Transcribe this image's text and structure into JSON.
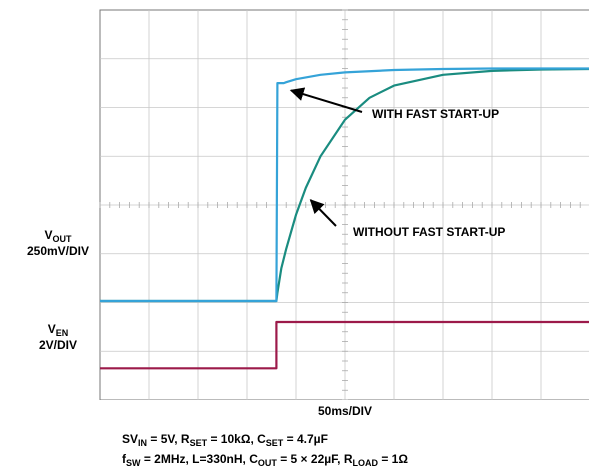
{
  "chart_data": {
    "type": "line",
    "xlabel": "50ms/DIV",
    "divisions": {
      "x": 10,
      "y": 8
    },
    "grid": true,
    "channels": [
      {
        "name_main": "V",
        "name_sub": "OUT",
        "scale": "250mV/DIV",
        "color": "#0e7f7f"
      },
      {
        "name_main": "V",
        "name_sub": "EN",
        "scale": "2V/DIV",
        "color": "#9c1a4a"
      }
    ],
    "series": [
      {
        "id": "vout-without",
        "color": "#1a8c80",
        "x": [
          0,
          3.6,
          3.62,
          3.7,
          3.8,
          3.9,
          4.0,
          4.2,
          4.5,
          5.0,
          5.5,
          6.0,
          7.0,
          8.0,
          9.0,
          10.0
        ],
        "y": [
          2.03,
          2.03,
          2.2,
          2.7,
          3.1,
          3.45,
          3.8,
          4.35,
          5.0,
          5.75,
          6.2,
          6.45,
          6.67,
          6.75,
          6.78,
          6.79
        ]
      },
      {
        "id": "vout-with",
        "color": "#35a3d8",
        "x": [
          0,
          3.6,
          3.62,
          3.75,
          3.8,
          4.0,
          4.5,
          5.0,
          6.0,
          7.0,
          8.0,
          10.0
        ],
        "y": [
          2.03,
          2.03,
          6.5,
          6.5,
          6.52,
          6.58,
          6.67,
          6.72,
          6.77,
          6.79,
          6.8,
          6.8
        ]
      },
      {
        "id": "ven",
        "color": "#9c1a4a",
        "x": [
          0,
          3.6,
          3.6,
          10.0
        ],
        "y": [
          0.65,
          0.65,
          1.6,
          1.6
        ]
      }
    ],
    "annotations": [
      {
        "text": "WITH FAST START-UP",
        "arrow_to": [
          3.9,
          6.35
        ]
      },
      {
        "text": "WITHOUT FAST START-UP",
        "arrow_to": [
          4.3,
          4.1
        ]
      }
    ]
  },
  "conditions": [
    [
      {
        "t": "SV"
      },
      {
        "s": "IN"
      },
      {
        "t": " = 5V, R"
      },
      {
        "s": "SET"
      },
      {
        "t": " = 10kΩ, C"
      },
      {
        "s": "SET"
      },
      {
        "t": " = 4.7µF"
      }
    ],
    [
      {
        "t": "f"
      },
      {
        "s": "SW"
      },
      {
        "t": " = 2MHz, L=330nH, C"
      },
      {
        "s": "OUT"
      },
      {
        "t": " = 5 × 22µF, R"
      },
      {
        "s": "LOAD"
      },
      {
        "t": " = 1Ω"
      }
    ]
  ]
}
